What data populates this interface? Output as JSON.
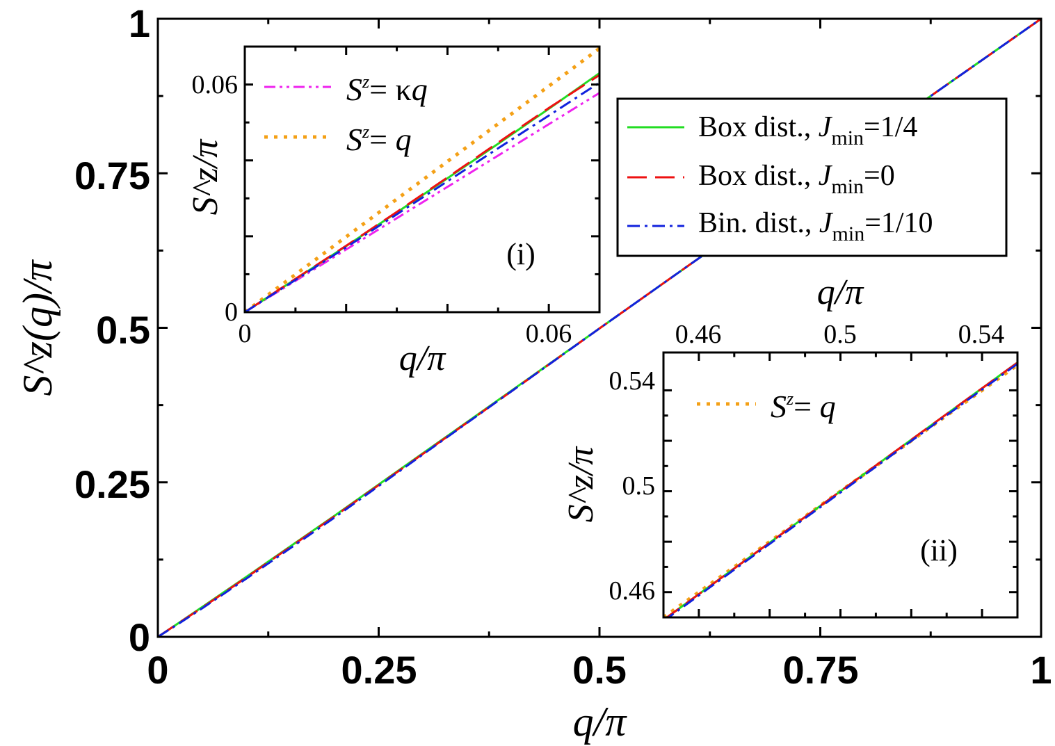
{
  "colors": {
    "box_jmin_quarter": "#22dd22",
    "box_jmin_zero": "#ee1111",
    "bin_jmin_tenth": "#1122dd",
    "kappa_q": "#ee22ee",
    "identity": "#f4a016",
    "axis": "#000000"
  },
  "chart_data": [
    {
      "id": "main",
      "type": "line",
      "xlabel": "q/π",
      "ylabel": "S^z(q)/π",
      "xlim": [
        0,
        1
      ],
      "ylim": [
        0,
        1
      ],
      "xticks": [
        "0",
        "0.25",
        "0.5",
        "0.75",
        "1"
      ],
      "yticks": [
        "0",
        "0.25",
        "0.5",
        "0.75",
        "1"
      ],
      "grid": false,
      "legend_position": "upper-right",
      "series": [
        {
          "name": "Box dist., J_min=1/4",
          "legend_main": "Box dist., ",
          "legend_j": "J",
          "legend_sub": "min",
          "legend_val": "=1/4",
          "style": "solid",
          "color": "#22dd22",
          "x": [
            0,
            0.02,
            0.05,
            0.1,
            0.2,
            0.3,
            0.4,
            0.5,
            0.6,
            0.7,
            0.8,
            0.9,
            1.0
          ],
          "y": [
            0,
            0.019,
            0.048,
            0.097,
            0.196,
            0.297,
            0.398,
            0.499,
            0.6,
            0.7,
            0.8,
            0.9,
            1.0
          ]
        },
        {
          "name": "Box dist., J_min=0",
          "legend_main": "Box dist., ",
          "legend_j": "J",
          "legend_sub": "min",
          "legend_val": "=0",
          "style": "dashed",
          "color": "#ee1111",
          "x": [
            0,
            0.02,
            0.05,
            0.1,
            0.2,
            0.3,
            0.4,
            0.5,
            0.6,
            0.7,
            0.8,
            0.9,
            1.0
          ],
          "y": [
            0,
            0.019,
            0.047,
            0.096,
            0.195,
            0.296,
            0.397,
            0.499,
            0.6,
            0.7,
            0.8,
            0.9,
            1.0
          ]
        },
        {
          "name": "Bin. dist., J_min=1/10",
          "legend_main": "Bin. dist., ",
          "legend_j": "J",
          "legend_sub": "min",
          "legend_val": "=1/10",
          "style": "dashdot",
          "color": "#1122dd",
          "x": [
            0,
            0.02,
            0.05,
            0.1,
            0.2,
            0.3,
            0.4,
            0.5,
            0.6,
            0.7,
            0.8,
            0.9,
            1.0
          ],
          "y": [
            0,
            0.018,
            0.046,
            0.094,
            0.193,
            0.295,
            0.397,
            0.499,
            0.6,
            0.7,
            0.8,
            0.9,
            1.0
          ]
        }
      ]
    },
    {
      "id": "inset-i",
      "type": "line",
      "panel_label": "(i)",
      "xlabel": "q/π",
      "ylabel": "S^z/π",
      "xlim": [
        0,
        0.07
      ],
      "ylim": [
        0,
        0.07
      ],
      "xticks": [
        "0",
        "0.06"
      ],
      "yticks": [
        "0",
        "0.06"
      ],
      "grid": false,
      "legend_position": "top-left",
      "series": [
        {
          "name": "S^z=κq",
          "legend_s": "S",
          "legend_sup": "z",
          "legend_eq": "= κ",
          "legend_q": "q",
          "style": "dashdotdot",
          "color": "#ee22ee",
          "x": [
            0,
            0.07
          ],
          "y": [
            0,
            0.0578
          ]
        },
        {
          "name": "S^z=q",
          "legend_s": "S",
          "legend_sup": "z",
          "legend_eq": "= ",
          "legend_q": "q",
          "style": "dotted",
          "color": "#f4a016",
          "x": [
            0,
            0.07
          ],
          "y": [
            0,
            0.0695
          ]
        },
        {
          "name": "Box dist., J_min=1/4",
          "style": "solid",
          "color": "#22dd22",
          "x": [
            0,
            0.01,
            0.02,
            0.03,
            0.04,
            0.05,
            0.06,
            0.07
          ],
          "y": [
            0,
            0.0087,
            0.0174,
            0.0263,
            0.0353,
            0.0444,
            0.0536,
            0.063
          ]
        },
        {
          "name": "Box dist., J_min=0",
          "style": "dashed",
          "color": "#ee1111",
          "x": [
            0,
            0.01,
            0.02,
            0.03,
            0.04,
            0.05,
            0.06,
            0.07
          ],
          "y": [
            0,
            0.0088,
            0.0175,
            0.0264,
            0.0355,
            0.0447,
            0.0538,
            0.0625
          ]
        },
        {
          "name": "Bin. dist., J_min=1/10",
          "style": "dashdot",
          "color": "#1122dd",
          "x": [
            0,
            0.01,
            0.02,
            0.03,
            0.04,
            0.05,
            0.06,
            0.07
          ],
          "y": [
            0,
            0.0085,
            0.0171,
            0.0258,
            0.0345,
            0.0432,
            0.0518,
            0.0605
          ]
        }
      ]
    },
    {
      "id": "inset-ii",
      "type": "line",
      "panel_label": "(ii)",
      "xlabel": "q/π",
      "ylabel": "S^z/π",
      "xlim": [
        0.45,
        0.55
      ],
      "ylim": [
        0.45,
        0.555
      ],
      "xticks": [
        "0.46",
        "0.5",
        "0.54"
      ],
      "yticks": [
        "0.46",
        "0.5",
        "0.54"
      ],
      "grid": false,
      "legend_position": "top-left",
      "series": [
        {
          "name": "S^z=q",
          "legend_s": "S",
          "legend_sup": "z",
          "legend_eq": "= ",
          "legend_q": "q",
          "style": "dotted",
          "color": "#f4a016",
          "x": [
            0.45,
            0.55
          ],
          "y": [
            0.45,
            0.55
          ]
        },
        {
          "name": "Box dist., J_min=1/4",
          "style": "solid",
          "color": "#22dd22",
          "x": [
            0.45,
            0.55
          ],
          "y": [
            0.449,
            0.551
          ]
        },
        {
          "name": "Box dist., J_min=0",
          "style": "dashed",
          "color": "#ee1111",
          "x": [
            0.45,
            0.55
          ],
          "y": [
            0.449,
            0.551
          ]
        },
        {
          "name": "Bin. dist., J_min=1/10",
          "style": "dashdot",
          "color": "#1122dd",
          "x": [
            0.45,
            0.55
          ],
          "y": [
            0.4485,
            0.5505
          ]
        }
      ]
    }
  ]
}
